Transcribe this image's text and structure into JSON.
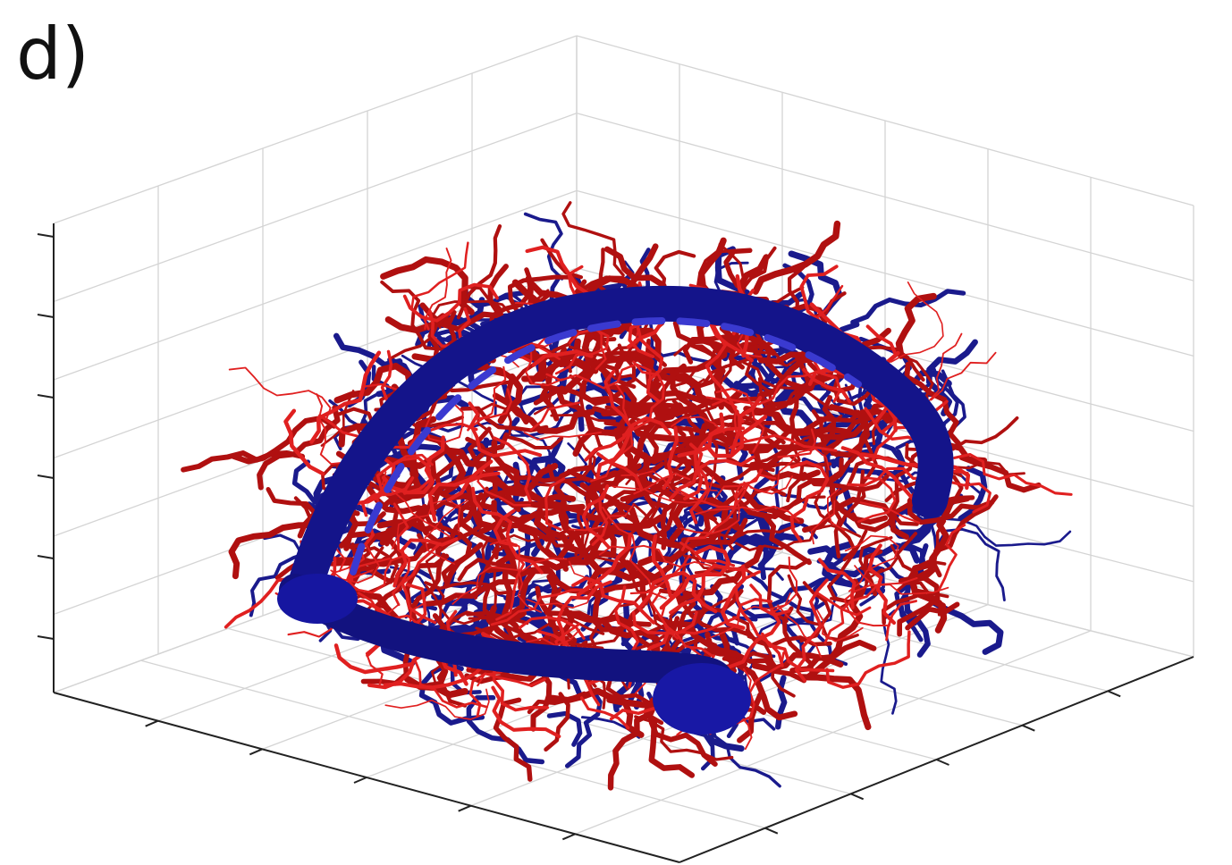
{
  "panel_label": "d)"
}
